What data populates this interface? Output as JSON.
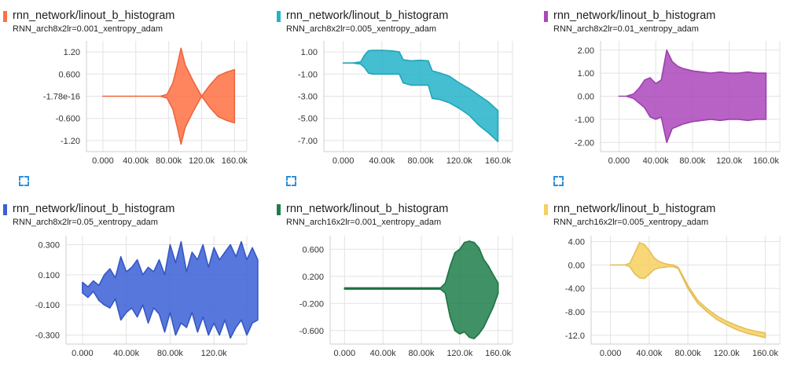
{
  "panels": [
    {
      "title": "rnn_network/linout_b_histogram",
      "run": "RNN_arch8x2lr=0.001_xentropy_adam",
      "color": "#ff7043"
    },
    {
      "title": "rnn_network/linout_b_histogram",
      "run": "RNN_arch8x2lr=0.005_xentropy_adam",
      "color": "#24b3c9"
    },
    {
      "title": "rnn_network/linout_b_histogram",
      "run": "RNN_arch8x2lr=0.01_xentropy_adam",
      "color": "#ab47bc"
    },
    {
      "title": "rnn_network/linout_b_histogram",
      "run": "RNN_arch8x2lr=0.05_xentropy_adam",
      "color": "#3b5fd6"
    },
    {
      "title": "rnn_network/linout_b_histogram",
      "run": "RNN_arch16x2lr=0.001_xentropy_adam",
      "color": "#1e7e4a"
    },
    {
      "title": "rnn_network/linout_b_histogram",
      "run": "RNN_arch16x2lr=0.005_xentropy_adam",
      "color": "#f7d060"
    }
  ],
  "expand_icon": "fullscreen-icon",
  "chart_data": [
    {
      "type": "area",
      "x": [
        0,
        10000,
        20000,
        30000,
        40000,
        50000,
        60000,
        70000,
        78000,
        85000,
        90000,
        95000,
        100000,
        110000,
        120000,
        130000,
        140000,
        150000,
        160000
      ],
      "upper": [
        0,
        0,
        0,
        0,
        0,
        0,
        0,
        0,
        0.05,
        0.35,
        0.8,
        1.3,
        0.85,
        0.4,
        0,
        0.3,
        0.55,
        0.65,
        0.72
      ],
      "lower": [
        0,
        0,
        0,
        0,
        0,
        0,
        0,
        0,
        -0.05,
        -0.35,
        -0.8,
        -1.3,
        -0.85,
        -0.4,
        0,
        -0.3,
        -0.55,
        -0.65,
        -0.72
      ],
      "ylim": [
        -1.5,
        1.5
      ],
      "yticks": [
        1.2,
        0.6,
        0,
        -0.6,
        -1.2
      ],
      "ytick_labels": [
        "1.20",
        "0.600",
        "-1.78e-16",
        "-0.600",
        "-1.20"
      ],
      "xlim": [
        -20000,
        175000
      ],
      "xticks": [
        0,
        40000,
        80000,
        120000,
        160000
      ],
      "xtick_labels": [
        "0.000",
        "40.00k",
        "80.00k",
        "120.0k",
        "160.0k"
      ]
    },
    {
      "type": "area",
      "x": [
        0,
        10000,
        18000,
        22000,
        26000,
        30000,
        40000,
        50000,
        58000,
        62000,
        70000,
        80000,
        88000,
        92000,
        100000,
        110000,
        120000,
        130000,
        140000,
        150000,
        160000
      ],
      "upper": [
        0,
        0,
        0.1,
        0.7,
        1.1,
        1.15,
        1.15,
        1.1,
        1.0,
        0.3,
        0.2,
        0.25,
        0.2,
        -0.7,
        -0.9,
        -1.2,
        -1.8,
        -2.3,
        -2.9,
        -3.5,
        -4.3
      ],
      "lower": [
        0,
        0,
        -0.1,
        -0.4,
        -0.9,
        -1.0,
        -1.0,
        -1.0,
        -1.0,
        -1.8,
        -2.0,
        -2.0,
        -2.0,
        -3.2,
        -3.3,
        -3.6,
        -4.1,
        -4.7,
        -5.6,
        -6.3,
        -7.1
      ],
      "ylim": [
        -8,
        2
      ],
      "yticks": [
        1,
        -1,
        -3,
        -5,
        -7
      ],
      "ytick_labels": [
        "1.00",
        "-1.00",
        "-3.00",
        "-5.00",
        "-7.00"
      ],
      "xlim": [
        -20000,
        175000
      ],
      "xticks": [
        0,
        40000,
        80000,
        120000,
        160000
      ],
      "xtick_labels": [
        "0.000",
        "40.00k",
        "80.00k",
        "120.0k",
        "160.0k"
      ]
    },
    {
      "type": "area",
      "x": [
        0,
        8000,
        16000,
        22000,
        28000,
        34000,
        40000,
        46000,
        52000,
        58000,
        64000,
        70000,
        80000,
        90000,
        100000,
        110000,
        120000,
        130000,
        140000,
        150000,
        160000
      ],
      "upper": [
        0,
        0,
        0.1,
        0.35,
        0.7,
        0.8,
        0.55,
        0.7,
        2.0,
        1.5,
        1.3,
        1.2,
        1.1,
        1.05,
        1.0,
        1.05,
        1.0,
        1.0,
        1.05,
        1.0,
        1.0
      ],
      "lower": [
        0,
        0,
        -0.1,
        -0.3,
        -0.5,
        -0.9,
        -1.0,
        -0.9,
        -2.0,
        -1.4,
        -1.3,
        -1.2,
        -1.1,
        -1.05,
        -1.0,
        -1.05,
        -1.0,
        -1.0,
        -1.05,
        -1.0,
        -1.0
      ],
      "ylim": [
        -2.4,
        2.4
      ],
      "yticks": [
        2,
        1,
        0,
        -1,
        -2
      ],
      "ytick_labels": [
        "2.00",
        "1.00",
        "0.00",
        "-1.00",
        "-2.00"
      ],
      "xlim": [
        -20000,
        175000
      ],
      "xticks": [
        0,
        40000,
        80000,
        120000,
        160000
      ],
      "xtick_labels": [
        "0.000",
        "40.00k",
        "80.00k",
        "120.0k",
        "160.0k"
      ]
    },
    {
      "type": "area",
      "x": [
        0,
        5000,
        10000,
        15000,
        20000,
        25000,
        30000,
        35000,
        40000,
        45000,
        50000,
        55000,
        60000,
        65000,
        70000,
        75000,
        80000,
        85000,
        90000,
        95000,
        100000,
        105000,
        110000,
        115000,
        120000,
        125000,
        130000,
        135000,
        140000,
        145000,
        150000,
        155000,
        160000
      ],
      "upper": [
        0.05,
        0.02,
        0.06,
        0.03,
        0.1,
        0.14,
        0.08,
        0.22,
        0.12,
        0.15,
        0.2,
        0.1,
        0.15,
        0.12,
        0.2,
        0.1,
        0.3,
        0.18,
        0.32,
        0.12,
        0.25,
        0.2,
        0.3,
        0.15,
        0.28,
        0.2,
        0.25,
        0.3,
        0.22,
        0.32,
        0.2,
        0.28,
        0.2
      ],
      "lower": [
        -0.02,
        -0.05,
        -0.01,
        -0.07,
        -0.1,
        -0.12,
        -0.06,
        -0.2,
        -0.15,
        -0.12,
        -0.18,
        -0.1,
        -0.22,
        -0.12,
        -0.16,
        -0.28,
        -0.15,
        -0.3,
        -0.22,
        -0.25,
        -0.15,
        -0.28,
        -0.18,
        -0.3,
        -0.22,
        -0.3,
        -0.2,
        -0.32,
        -0.25,
        -0.2,
        -0.3,
        -0.22,
        -0.2
      ],
      "ylim": [
        -0.36,
        0.36
      ],
      "yticks": [
        0.3,
        0.1,
        -0.1,
        -0.3
      ],
      "ytick_labels": [
        "0.300",
        "0.100",
        "-0.100",
        "-0.300"
      ],
      "xlim": [
        -15000,
        150000
      ],
      "xticks": [
        0,
        40000,
        80000,
        120000
      ],
      "xtick_labels": [
        "0.000",
        "40.00k",
        "80.00k",
        "120.0k"
      ]
    },
    {
      "type": "area",
      "x": [
        0,
        20000,
        40000,
        60000,
        80000,
        100000,
        105000,
        110000,
        115000,
        120000,
        125000,
        130000,
        135000,
        140000,
        145000,
        150000,
        155000,
        160000
      ],
      "upper": [
        0.03,
        0.03,
        0.03,
        0.03,
        0.03,
        0.03,
        0.1,
        0.35,
        0.55,
        0.6,
        0.7,
        0.72,
        0.7,
        0.62,
        0.45,
        0.35,
        0.22,
        0.1
      ],
      "lower": [
        0.01,
        0.01,
        0.01,
        0.01,
        0.01,
        0.01,
        -0.05,
        -0.4,
        -0.6,
        -0.65,
        -0.62,
        -0.7,
        -0.72,
        -0.65,
        -0.55,
        -0.4,
        -0.25,
        -0.05
      ],
      "ylim": [
        -0.8,
        0.8
      ],
      "yticks": [
        0.6,
        0.2,
        -0.2,
        -0.6
      ],
      "ytick_labels": [
        "0.600",
        "0.200",
        "-0.200",
        "-0.600"
      ],
      "xlim": [
        -15000,
        175000
      ],
      "xticks": [
        0,
        40000,
        80000,
        120000,
        160000
      ],
      "xtick_labels": [
        "0.000",
        "40.00k",
        "80.00k",
        "120.0k",
        "160.0k"
      ]
    },
    {
      "type": "area",
      "x": [
        0,
        10000,
        15000,
        20000,
        25000,
        30000,
        35000,
        40000,
        45000,
        50000,
        55000,
        60000,
        65000,
        70000,
        80000,
        90000,
        100000,
        110000,
        120000,
        130000,
        140000,
        150000,
        160000
      ],
      "upper": [
        0,
        0,
        0,
        0.3,
        2.0,
        3.8,
        3.5,
        2.5,
        1.2,
        0.6,
        0.3,
        0.1,
        0.0,
        -0.4,
        -3.5,
        -6.0,
        -7.5,
        -8.7,
        -9.6,
        -10.3,
        -10.9,
        -11.3,
        -11.6
      ],
      "lower": [
        0,
        0,
        0,
        -0.3,
        -1.5,
        -2.2,
        -2.3,
        -1.6,
        -0.8,
        -0.5,
        -0.4,
        -0.3,
        -0.3,
        -0.6,
        -4.0,
        -6.5,
        -8.0,
        -9.3,
        -10.2,
        -11.0,
        -11.6,
        -12.0,
        -12.4
      ],
      "ylim": [
        -13.5,
        5
      ],
      "yticks": [
        4,
        0,
        -4,
        -8,
        -12
      ],
      "ytick_labels": [
        "4.00",
        "0.00",
        "-4.00",
        "-8.00",
        "-12.0"
      ],
      "xlim": [
        -20000,
        175000
      ],
      "xticks": [
        0,
        40000,
        80000,
        120000,
        160000
      ],
      "xtick_labels": [
        "0.000",
        "40.00k",
        "80.00k",
        "120.0k",
        "160.0k"
      ]
    }
  ]
}
